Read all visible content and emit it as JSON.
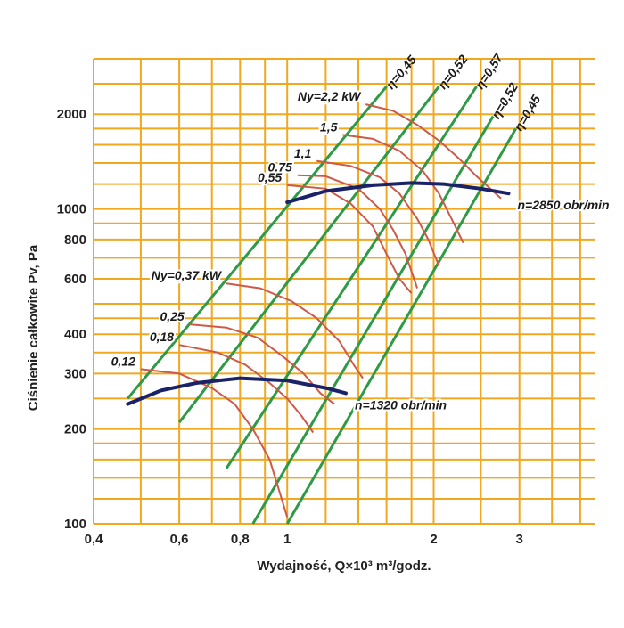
{
  "chart_data": {
    "type": "line",
    "title": "",
    "xlabel": "Wydajność, Q×10³ m³/godz.",
    "ylabel": "Ciśnienie całkowite Pv, Pa",
    "x_scale": "log",
    "y_scale": "log",
    "xlim": [
      0.4,
      4.3
    ],
    "ylim": [
      100,
      3000
    ],
    "x_ticks": [
      {
        "value": 0.4,
        "label": "0,4"
      },
      {
        "value": 0.6,
        "label": "0,6"
      },
      {
        "value": 0.8,
        "label": "0,8"
      },
      {
        "value": 1,
        "label": "1"
      },
      {
        "value": 2,
        "label": "2"
      },
      {
        "value": 3,
        "label": "3"
      }
    ],
    "y_ticks": [
      {
        "value": 100,
        "label": "100"
      },
      {
        "value": 200,
        "label": "200"
      },
      {
        "value": 300,
        "label": "300"
      },
      {
        "value": 400,
        "label": "400"
      },
      {
        "value": 600,
        "label": "600"
      },
      {
        "value": 800,
        "label": "800"
      },
      {
        "value": 1000,
        "label": "1000"
      },
      {
        "value": 2000,
        "label": "2000"
      }
    ],
    "grid": true,
    "colors": {
      "grid": "#f0a820",
      "power_curve": "#cd5a48",
      "efficiency_line": "#2e9a45",
      "speed_curve": "#1a2368"
    },
    "speed_curves": [
      {
        "label": "n=2850 obr/min",
        "points": [
          [
            1.0,
            1050
          ],
          [
            1.2,
            1140
          ],
          [
            1.5,
            1190
          ],
          [
            1.8,
            1210
          ],
          [
            2.1,
            1200
          ],
          [
            2.5,
            1160
          ],
          [
            2.85,
            1120
          ]
        ]
      },
      {
        "label": "n=1320 obr/min",
        "points": [
          [
            0.47,
            240
          ],
          [
            0.55,
            265
          ],
          [
            0.65,
            280
          ],
          [
            0.8,
            290
          ],
          [
            1.0,
            285
          ],
          [
            1.2,
            270
          ],
          [
            1.32,
            260
          ]
        ]
      }
    ],
    "power_curves": [
      {
        "label": "Ny=2,2 kW",
        "points": [
          [
            1.45,
            2150
          ],
          [
            1.65,
            2050
          ],
          [
            1.85,
            1850
          ],
          [
            2.05,
            1650
          ],
          [
            2.25,
            1450
          ],
          [
            2.45,
            1270
          ],
          [
            2.75,
            1080
          ]
        ]
      },
      {
        "label": "1,5",
        "points": [
          [
            1.3,
            1720
          ],
          [
            1.5,
            1670
          ],
          [
            1.7,
            1530
          ],
          [
            1.9,
            1320
          ],
          [
            2.05,
            1120
          ],
          [
            2.2,
            900
          ],
          [
            2.3,
            780
          ]
        ]
      },
      {
        "label": "1,1",
        "points": [
          [
            1.15,
            1420
          ],
          [
            1.35,
            1370
          ],
          [
            1.55,
            1260
          ],
          [
            1.7,
            1120
          ],
          [
            1.85,
            930
          ],
          [
            1.95,
            800
          ],
          [
            2.05,
            660
          ]
        ]
      },
      {
        "label": "0,75",
        "points": [
          [
            1.05,
            1280
          ],
          [
            1.2,
            1270
          ],
          [
            1.4,
            1160
          ],
          [
            1.55,
            1000
          ],
          [
            1.65,
            860
          ],
          [
            1.75,
            720
          ],
          [
            1.85,
            560
          ]
        ]
      },
      {
        "label": "0,55",
        "points": [
          [
            1.0,
            1190
          ],
          [
            1.2,
            1160
          ],
          [
            1.35,
            1040
          ],
          [
            1.5,
            880
          ],
          [
            1.6,
            720
          ],
          [
            1.7,
            600
          ],
          [
            1.8,
            540
          ]
        ]
      },
      {
        "label": "Ny=0,37 kW",
        "points": [
          [
            0.75,
            580
          ],
          [
            0.88,
            560
          ],
          [
            1.02,
            510
          ],
          [
            1.15,
            450
          ],
          [
            1.28,
            380
          ],
          [
            1.37,
            320
          ],
          [
            1.43,
            290
          ]
        ]
      },
      {
        "label": "0,25",
        "points": [
          [
            0.63,
            430
          ],
          [
            0.75,
            420
          ],
          [
            0.87,
            390
          ],
          [
            0.98,
            340
          ],
          [
            1.08,
            300
          ],
          [
            1.17,
            260
          ],
          [
            1.25,
            240
          ]
        ]
      },
      {
        "label": "0,18",
        "points": [
          [
            0.6,
            370
          ],
          [
            0.72,
            350
          ],
          [
            0.82,
            320
          ],
          [
            0.92,
            280
          ],
          [
            1.0,
            250
          ],
          [
            1.07,
            220
          ],
          [
            1.13,
            195
          ]
        ]
      },
      {
        "label": "0,12",
        "points": [
          [
            0.5,
            310
          ],
          [
            0.6,
            300
          ],
          [
            0.7,
            270
          ],
          [
            0.78,
            240
          ],
          [
            0.85,
            200
          ],
          [
            0.92,
            160
          ],
          [
            1.0,
            105
          ]
        ]
      }
    ],
    "efficiency_lines": [
      {
        "label": "η=0,45",
        "from": [
          0.47,
          250
        ],
        "to": [
          1.6,
          2450
        ]
      },
      {
        "label": "η=0,52",
        "from": [
          0.6,
          210
        ],
        "to": [
          2.05,
          2450
        ]
      },
      {
        "label": "η=0,57",
        "from": [
          0.75,
          150
        ],
        "to": [
          2.45,
          2450
        ]
      },
      {
        "label": "η=0,52",
        "from": [
          0.85,
          100
        ],
        "to": [
          2.65,
          1970
        ]
      },
      {
        "label": "η=0,45",
        "from": [
          1.0,
          100
        ],
        "to": [
          2.95,
          1800
        ]
      }
    ]
  }
}
